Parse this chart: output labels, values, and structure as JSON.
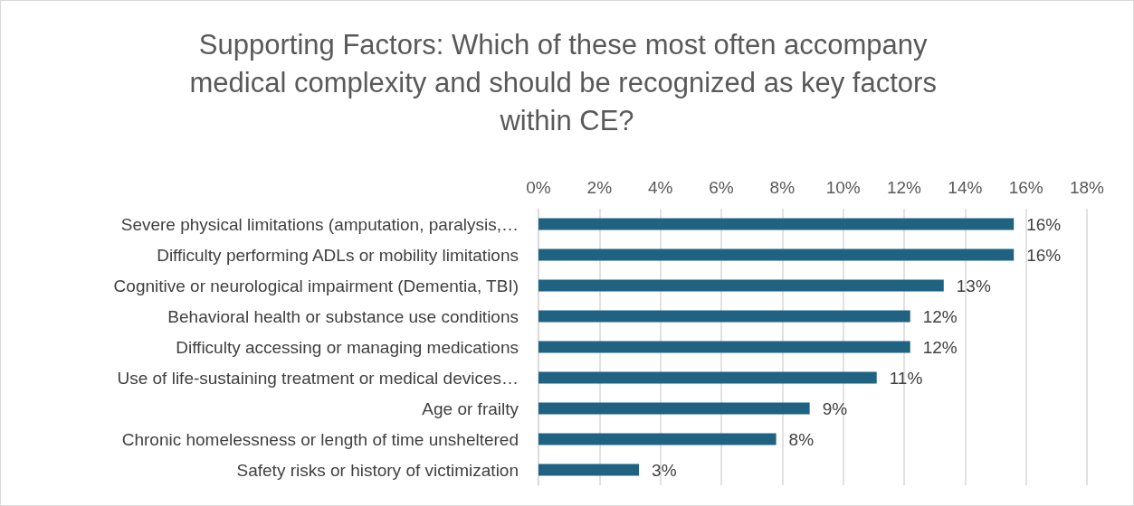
{
  "chart_data": {
    "type": "bar",
    "orientation": "horizontal",
    "title": "Supporting Factors: Which of these most often accompany medical complexity and should be recognized as key factors within CE?",
    "categories": [
      "Severe physical limitations (amputation, paralysis,…",
      "Difficulty performing ADLs or mobility limitations",
      "Cognitive or neurological impairment (Dementia, TBI)",
      "Behavioral health or substance use conditions",
      "Difficulty accessing or managing medications",
      "Use of life-sustaining treatment or medical devices…",
      "Age or frailty",
      "Chronic homelessness or length of time unsheltered",
      "Safety risks or history of victimization"
    ],
    "values": [
      15.6,
      15.6,
      13.3,
      12.2,
      12.2,
      11.1,
      8.9,
      7.8,
      3.3
    ],
    "value_labels": [
      "16%",
      "16%",
      "13%",
      "12%",
      "12%",
      "11%",
      "9%",
      "8%",
      "3%"
    ],
    "color": "#1f6282",
    "xlim": [
      0,
      18
    ],
    "xticks": [
      {
        "value": 0,
        "label": "0%"
      },
      {
        "value": 2,
        "label": "2%"
      },
      {
        "value": 4,
        "label": "4%"
      },
      {
        "value": 6,
        "label": "6%"
      },
      {
        "value": 8,
        "label": "8%"
      },
      {
        "value": 10,
        "label": "10%"
      },
      {
        "value": 12,
        "label": "12%"
      },
      {
        "value": 14,
        "label": "14%"
      },
      {
        "value": 16,
        "label": "16%"
      },
      {
        "value": 18,
        "label": "18%"
      }
    ],
    "grid": "x"
  }
}
